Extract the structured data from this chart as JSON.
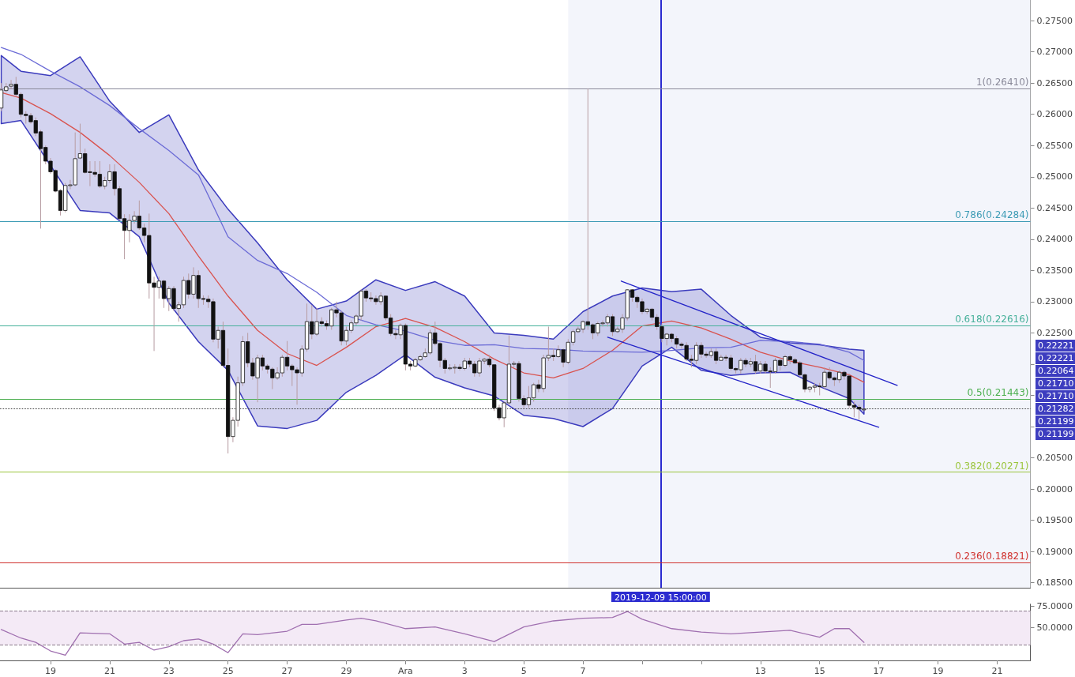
{
  "chart_data": [
    {
      "type": "candlestick",
      "tick_labels": "y",
      "xlim": [
        "2019-11-17T07:00",
        "2019-12-22T03:00"
      ],
      "ylim": [
        0.1842,
        0.2783
      ],
      "yticks": [
        {
          "value": 0.185,
          "label": "0.18500"
        },
        {
          "value": 0.19,
          "label": "0.19000"
        },
        {
          "value": 0.195,
          "label": "0.19500"
        },
        {
          "value": 0.2,
          "label": "0.20000"
        },
        {
          "value": 0.205,
          "label": "0.20500"
        },
        {
          "value": 0.21,
          "label": null
        },
        {
          "value": 0.215,
          "label": null
        },
        {
          "value": 0.22,
          "label": null
        },
        {
          "value": 0.225,
          "label": "0.22500"
        },
        {
          "value": 0.23,
          "label": "0.23000"
        },
        {
          "value": 0.235,
          "label": "0.23500"
        },
        {
          "value": 0.24,
          "label": "0.24000"
        },
        {
          "value": 0.245,
          "label": "0.24500"
        },
        {
          "value": 0.25,
          "label": "0.25000"
        },
        {
          "value": 0.255,
          "label": "0.25500"
        },
        {
          "value": 0.26,
          "label": "0.26000"
        },
        {
          "value": 0.265,
          "label": "0.26500"
        },
        {
          "value": 0.27,
          "label": "0.27000"
        },
        {
          "value": 0.275,
          "label": "0.27500"
        }
      ],
      "x": [
        "2019-11-17T08:00",
        "2019-11-17T12:00",
        "2019-11-17T16:00",
        "2019-11-17T20:00",
        "2019-11-18T00:00",
        "2019-11-18T04:00",
        "2019-11-18T08:00",
        "2019-11-18T12:00",
        "2019-11-18T16:00",
        "2019-11-18T20:00",
        "2019-11-19T00:00",
        "2019-11-19T04:00",
        "2019-11-19T08:00",
        "2019-11-19T12:00",
        "2019-11-19T16:00",
        "2019-11-19T20:00",
        "2019-11-20T00:00",
        "2019-11-20T04:00",
        "2019-11-20T08:00",
        "2019-11-20T12:00",
        "2019-11-20T16:00",
        "2019-11-20T20:00",
        "2019-11-21T00:00",
        "2019-11-21T04:00",
        "2019-11-21T08:00",
        "2019-11-21T12:00",
        "2019-11-21T16:00",
        "2019-11-21T20:00",
        "2019-11-22T00:00",
        "2019-11-22T04:00",
        "2019-11-22T08:00",
        "2019-11-22T12:00",
        "2019-11-22T16:00",
        "2019-11-22T20:00",
        "2019-11-23T00:00",
        "2019-11-23T04:00",
        "2019-11-23T08:00",
        "2019-11-23T12:00",
        "2019-11-23T16:00",
        "2019-11-23T20:00",
        "2019-11-24T00:00",
        "2019-11-24T04:00",
        "2019-11-24T08:00",
        "2019-11-24T12:00",
        "2019-11-24T16:00",
        "2019-11-24T20:00",
        "2019-11-25T00:00",
        "2019-11-25T04:00",
        "2019-11-25T08:00",
        "2019-11-25T12:00",
        "2019-11-25T16:00",
        "2019-11-25T20:00",
        "2019-11-26T00:00",
        "2019-11-26T04:00",
        "2019-11-26T08:00",
        "2019-11-26T12:00",
        "2019-11-26T16:00",
        "2019-11-26T20:00",
        "2019-11-27T00:00",
        "2019-11-27T04:00",
        "2019-11-27T08:00",
        "2019-11-27T12:00",
        "2019-11-27T16:00",
        "2019-11-27T20:00",
        "2019-11-28T00:00",
        "2019-11-28T04:00",
        "2019-11-28T08:00",
        "2019-11-28T12:00",
        "2019-11-28T16:00",
        "2019-11-28T20:00",
        "2019-11-29T00:00",
        "2019-11-29T04:00",
        "2019-11-29T08:00",
        "2019-11-29T12:00",
        "2019-11-29T16:00",
        "2019-11-29T20:00",
        "2019-11-30T00:00",
        "2019-11-30T04:00",
        "2019-11-30T08:00",
        "2019-11-30T12:00",
        "2019-11-30T16:00",
        "2019-11-30T20:00",
        "2019-12-01T00:00",
        "2019-12-01T04:00",
        "2019-12-01T08:00",
        "2019-12-01T12:00",
        "2019-12-01T16:00",
        "2019-12-01T20:00",
        "2019-12-02T00:00",
        "2019-12-02T04:00",
        "2019-12-02T08:00",
        "2019-12-02T12:00",
        "2019-12-02T16:00",
        "2019-12-02T20:00",
        "2019-12-03T00:00",
        "2019-12-03T04:00",
        "2019-12-03T08:00",
        "2019-12-03T12:00",
        "2019-12-03T16:00",
        "2019-12-03T20:00",
        "2019-12-04T00:00",
        "2019-12-04T04:00",
        "2019-12-04T08:00",
        "2019-12-04T12:00",
        "2019-12-04T16:00",
        "2019-12-04T20:00",
        "2019-12-05T00:00",
        "2019-12-05T04:00",
        "2019-12-05T08:00",
        "2019-12-05T12:00",
        "2019-12-05T16:00",
        "2019-12-05T20:00",
        "2019-12-06T00:00",
        "2019-12-06T04:00",
        "2019-12-06T08:00",
        "2019-12-06T12:00",
        "2019-12-06T16:00",
        "2019-12-06T20:00",
        "2019-12-07T00:00",
        "2019-12-07T04:00",
        "2019-12-07T08:00",
        "2019-12-07T12:00",
        "2019-12-07T16:00",
        "2019-12-07T20:00",
        "2019-12-08T00:00",
        "2019-12-08T04:00",
        "2019-12-08T08:00",
        "2019-12-08T12:00",
        "2019-12-08T16:00",
        "2019-12-08T20:00",
        "2019-12-09T00:00",
        "2019-12-09T04:00",
        "2019-12-09T08:00",
        "2019-12-09T12:00",
        "2019-12-09T16:00",
        "2019-12-09T20:00",
        "2019-12-10T00:00",
        "2019-12-10T04:00",
        "2019-12-10T08:00",
        "2019-12-10T12:00",
        "2019-12-10T16:00",
        "2019-12-10T20:00",
        "2019-12-11T00:00",
        "2019-12-11T04:00",
        "2019-12-11T08:00",
        "2019-12-11T12:00",
        "2019-12-11T16:00",
        "2019-12-11T20:00",
        "2019-12-12T00:00",
        "2019-12-12T04:00",
        "2019-12-12T08:00",
        "2019-12-12T12:00",
        "2019-12-12T16:00",
        "2019-12-12T20:00",
        "2019-12-13T00:00",
        "2019-12-13T04:00",
        "2019-12-13T08:00",
        "2019-12-13T12:00",
        "2019-12-13T16:00",
        "2019-12-13T20:00",
        "2019-12-14T00:00",
        "2019-12-14T04:00",
        "2019-12-14T08:00",
        "2019-12-14T12:00",
        "2019-12-14T16:00",
        "2019-12-14T20:00",
        "2019-12-15T00:00",
        "2019-12-15T04:00",
        "2019-12-15T08:00",
        "2019-12-15T12:00",
        "2019-12-15T16:00",
        "2019-12-15T20:00",
        "2019-12-16T00:00",
        "2019-12-16T04:00",
        "2019-12-16T08:00",
        "2019-12-16T12:00"
      ],
      "ohlc": [
        [
          0.261,
          0.265,
          0.2605,
          0.2639
        ],
        [
          0.2638,
          0.265,
          0.2635,
          0.2644
        ],
        [
          0.2645,
          0.2655,
          0.264,
          0.2648
        ],
        [
          0.2648,
          0.266,
          0.2628,
          0.2632
        ],
        [
          0.2632,
          0.2635,
          0.2595,
          0.26
        ],
        [
          0.26,
          0.2605,
          0.2585,
          0.2598
        ],
        [
          0.2598,
          0.2602,
          0.2585,
          0.2588
        ],
        [
          0.259,
          0.2595,
          0.2565,
          0.257
        ],
        [
          0.2572,
          0.2575,
          0.2417,
          0.2545
        ],
        [
          0.2547,
          0.255,
          0.252,
          0.2525
        ],
        [
          0.2525,
          0.253,
          0.2505,
          0.2508
        ],
        [
          0.251,
          0.2512,
          0.2475,
          0.2477
        ],
        [
          0.2478,
          0.248,
          0.2438,
          0.2446
        ],
        [
          0.2446,
          0.249,
          0.2443,
          0.2486
        ],
        [
          0.2486,
          0.2495,
          0.248,
          0.2487
        ],
        [
          0.2487,
          0.2571,
          0.2485,
          0.2529
        ],
        [
          0.253,
          0.2585,
          0.2528,
          0.2537
        ],
        [
          0.2537,
          0.2545,
          0.2505,
          0.2507
        ],
        [
          0.2508,
          0.2525,
          0.2485,
          0.2507
        ],
        [
          0.2507,
          0.2525,
          0.25,
          0.2504
        ],
        [
          0.2504,
          0.2525,
          0.2482,
          0.2485
        ],
        [
          0.2485,
          0.25,
          0.248,
          0.2494
        ],
        [
          0.2494,
          0.252,
          0.249,
          0.2508
        ],
        [
          0.2508,
          0.252,
          0.247,
          0.2481
        ],
        [
          0.2481,
          0.2485,
          0.243,
          0.2433
        ],
        [
          0.2433,
          0.244,
          0.2368,
          0.2414
        ],
        [
          0.2414,
          0.244,
          0.2395,
          0.243
        ],
        [
          0.243,
          0.2445,
          0.2425,
          0.2437
        ],
        [
          0.2437,
          0.2462,
          0.2415,
          0.2418
        ],
        [
          0.2418,
          0.2425,
          0.2395,
          0.2406
        ],
        [
          0.2406,
          0.2441,
          0.2305,
          0.233
        ],
        [
          0.233,
          0.234,
          0.2221,
          0.2323
        ],
        [
          0.2323,
          0.234,
          0.2305,
          0.2333
        ],
        [
          0.2333,
          0.2335,
          0.229,
          0.2305
        ],
        [
          0.2305,
          0.2325,
          0.2285,
          0.2321
        ],
        [
          0.2321,
          0.2325,
          0.2285,
          0.2289
        ],
        [
          0.2289,
          0.23,
          0.2268,
          0.2295
        ],
        [
          0.2295,
          0.234,
          0.229,
          0.2334
        ],
        [
          0.2334,
          0.2345,
          0.2305,
          0.2312
        ],
        [
          0.2312,
          0.2355,
          0.2305,
          0.2342
        ],
        [
          0.2342,
          0.235,
          0.229,
          0.2305
        ],
        [
          0.2305,
          0.231,
          0.2295,
          0.2304
        ],
        [
          0.2304,
          0.231,
          0.229,
          0.23
        ],
        [
          0.23,
          0.2305,
          0.2235,
          0.224
        ],
        [
          0.224,
          0.226,
          0.2225,
          0.2254
        ],
        [
          0.2254,
          0.2268,
          0.2195,
          0.2198
        ],
        [
          0.2198,
          0.2225,
          0.2057,
          0.2084
        ],
        [
          0.2084,
          0.2115,
          0.2075,
          0.211
        ],
        [
          0.211,
          0.218,
          0.21,
          0.217
        ],
        [
          0.217,
          0.2245,
          0.2165,
          0.2236
        ],
        [
          0.2236,
          0.225,
          0.2195,
          0.2202
        ],
        [
          0.2202,
          0.221,
          0.2175,
          0.2181
        ],
        [
          0.2178,
          0.2215,
          0.2139,
          0.221
        ],
        [
          0.221,
          0.2215,
          0.219,
          0.2197
        ],
        [
          0.2197,
          0.22,
          0.2185,
          0.2192
        ],
        [
          0.2192,
          0.2195,
          0.216,
          0.2178
        ],
        [
          0.2178,
          0.2195,
          0.2175,
          0.2186
        ],
        [
          0.2186,
          0.2215,
          0.218,
          0.2211
        ],
        [
          0.2211,
          0.2237,
          0.219,
          0.2197
        ],
        [
          0.2197,
          0.22,
          0.2165,
          0.2191
        ],
        [
          0.2191,
          0.2195,
          0.2135,
          0.2186
        ],
        [
          0.2186,
          0.223,
          0.218,
          0.2224
        ],
        [
          0.2224,
          0.2297,
          0.222,
          0.2268
        ],
        [
          0.2268,
          0.2295,
          0.224,
          0.2248
        ],
        [
          0.2248,
          0.229,
          0.2245,
          0.2268
        ],
        [
          0.2268,
          0.2275,
          0.226,
          0.2265
        ],
        [
          0.2265,
          0.227,
          0.2255,
          0.2261
        ],
        [
          0.2261,
          0.229,
          0.2255,
          0.2287
        ],
        [
          0.2287,
          0.23,
          0.2275,
          0.2282
        ],
        [
          0.2282,
          0.2285,
          0.223,
          0.2237
        ],
        [
          0.2237,
          0.226,
          0.223,
          0.2254
        ],
        [
          0.2254,
          0.227,
          0.225,
          0.2266
        ],
        [
          0.2266,
          0.228,
          0.2262,
          0.2277
        ],
        [
          0.2277,
          0.232,
          0.227,
          0.2317
        ],
        [
          0.2317,
          0.232,
          0.23,
          0.2306
        ],
        [
          0.2306,
          0.2315,
          0.23,
          0.2305
        ],
        [
          0.2305,
          0.231,
          0.2295,
          0.23
        ],
        [
          0.23,
          0.2315,
          0.2295,
          0.2309
        ],
        [
          0.2309,
          0.231,
          0.227,
          0.2274
        ],
        [
          0.2274,
          0.228,
          0.2245,
          0.2249
        ],
        [
          0.2249,
          0.2255,
          0.224,
          0.2247
        ],
        [
          0.2247,
          0.2265,
          0.224,
          0.2262
        ],
        [
          0.2262,
          0.2265,
          0.219,
          0.22
        ],
        [
          0.22,
          0.2205,
          0.219,
          0.2197
        ],
        [
          0.2197,
          0.221,
          0.2195,
          0.2207
        ],
        [
          0.2207,
          0.2215,
          0.2205,
          0.2212
        ],
        [
          0.2212,
          0.2225,
          0.221,
          0.2218
        ],
        [
          0.2218,
          0.2255,
          0.2215,
          0.225
        ],
        [
          0.225,
          0.2268,
          0.223,
          0.2233
        ],
        [
          0.2233,
          0.2235,
          0.2195,
          0.2206
        ],
        [
          0.2206,
          0.221,
          0.2185,
          0.2193
        ],
        [
          0.2193,
          0.22,
          0.219,
          0.2194
        ],
        [
          0.2194,
          0.22,
          0.2185,
          0.2195
        ],
        [
          0.2195,
          0.22,
          0.219,
          0.2193
        ],
        [
          0.2193,
          0.221,
          0.219,
          0.2205
        ],
        [
          0.2205,
          0.221,
          0.2195,
          0.22
        ],
        [
          0.22,
          0.2205,
          0.218,
          0.2186
        ],
        [
          0.2186,
          0.221,
          0.218,
          0.2205
        ],
        [
          0.2205,
          0.221,
          0.22,
          0.2208
        ],
        [
          0.2208,
          0.2215,
          0.2195,
          0.2199
        ],
        [
          0.2199,
          0.22,
          0.2125,
          0.213
        ],
        [
          0.213,
          0.2135,
          0.211,
          0.2114
        ],
        [
          0.2114,
          0.214,
          0.2099,
          0.2138
        ],
        [
          0.2138,
          0.2246,
          0.2135,
          0.22
        ],
        [
          0.22,
          0.2205,
          0.2195,
          0.2201
        ],
        [
          0.2201,
          0.2205,
          0.214,
          0.2145
        ],
        [
          0.2145,
          0.215,
          0.213,
          0.2135
        ],
        [
          0.2135,
          0.2165,
          0.213,
          0.2146
        ],
        [
          0.2146,
          0.217,
          0.214,
          0.2167
        ],
        [
          0.2167,
          0.2175,
          0.2155,
          0.2161
        ],
        [
          0.2161,
          0.2215,
          0.2155,
          0.221
        ],
        [
          0.221,
          0.226,
          0.2205,
          0.2214
        ],
        [
          0.2214,
          0.2225,
          0.2205,
          0.2212
        ],
        [
          0.2212,
          0.223,
          0.221,
          0.2223
        ],
        [
          0.2223,
          0.2225,
          0.2195,
          0.2203
        ],
        [
          0.2203,
          0.224,
          0.22,
          0.2235
        ],
        [
          0.2235,
          0.2255,
          0.223,
          0.2252
        ],
        [
          0.2252,
          0.226,
          0.225,
          0.2256
        ],
        [
          0.2256,
          0.227,
          0.225,
          0.2268
        ],
        [
          0.2268,
          0.2641,
          0.2255,
          0.2263
        ],
        [
          0.2263,
          0.2265,
          0.224,
          0.225
        ],
        [
          0.225,
          0.2268,
          0.2245,
          0.2265
        ],
        [
          0.2265,
          0.227,
          0.226,
          0.2266
        ],
        [
          0.2266,
          0.228,
          0.226,
          0.2276
        ],
        [
          0.2276,
          0.228,
          0.2245,
          0.2252
        ],
        [
          0.2252,
          0.226,
          0.225,
          0.2256
        ],
        [
          0.2256,
          0.228,
          0.225,
          0.2274
        ],
        [
          0.2274,
          0.232,
          0.227,
          0.2319
        ],
        [
          0.2319,
          0.232,
          0.23,
          0.2307
        ],
        [
          0.2307,
          0.231,
          0.229,
          0.23
        ],
        [
          0.23,
          0.2305,
          0.228,
          0.2284
        ],
        [
          0.2284,
          0.229,
          0.228,
          0.2288
        ],
        [
          0.2288,
          0.229,
          0.227,
          0.2275
        ],
        [
          0.2275,
          0.228,
          0.2255,
          0.226
        ],
        [
          0.226,
          0.2265,
          0.2235,
          0.2241
        ],
        [
          0.2241,
          0.225,
          0.223,
          0.2248
        ],
        [
          0.2248,
          0.225,
          0.2235,
          0.2241
        ],
        [
          0.2241,
          0.2245,
          0.2225,
          0.2232
        ],
        [
          0.2232,
          0.2235,
          0.2225,
          0.223
        ],
        [
          0.223,
          0.2235,
          0.2205,
          0.2208
        ],
        [
          0.2208,
          0.2215,
          0.2195,
          0.2206
        ],
        [
          0.2206,
          0.2235,
          0.22,
          0.223
        ],
        [
          0.223,
          0.2235,
          0.221,
          0.2216
        ],
        [
          0.2216,
          0.222,
          0.221,
          0.2214
        ],
        [
          0.2214,
          0.2225,
          0.221,
          0.222
        ],
        [
          0.222,
          0.2225,
          0.22,
          0.2206
        ],
        [
          0.2206,
          0.2215,
          0.2205,
          0.2211
        ],
        [
          0.2211,
          0.2215,
          0.2205,
          0.221
        ],
        [
          0.221,
          0.2215,
          0.219,
          0.2193
        ],
        [
          0.2193,
          0.2195,
          0.2185,
          0.2191
        ],
        [
          0.2191,
          0.221,
          0.2185,
          0.2206
        ],
        [
          0.2206,
          0.221,
          0.2195,
          0.22
        ],
        [
          0.22,
          0.221,
          0.2195,
          0.2204
        ],
        [
          0.2204,
          0.2215,
          0.2185,
          0.2189
        ],
        [
          0.2189,
          0.2205,
          0.2185,
          0.22
        ],
        [
          0.22,
          0.2205,
          0.2185,
          0.2189
        ],
        [
          0.2189,
          0.2195,
          0.2162,
          0.2188
        ],
        [
          0.2188,
          0.221,
          0.2185,
          0.2206
        ],
        [
          0.2206,
          0.221,
          0.219,
          0.2198
        ],
        [
          0.2198,
          0.2215,
          0.2195,
          0.2212
        ],
        [
          0.2212,
          0.2215,
          0.22,
          0.2207
        ],
        [
          0.2207,
          0.221,
          0.22,
          0.2202
        ],
        [
          0.2202,
          0.2205,
          0.218,
          0.2183
        ],
        [
          0.2183,
          0.2185,
          0.2155,
          0.216
        ],
        [
          0.216,
          0.2165,
          0.2155,
          0.2163
        ],
        [
          0.2163,
          0.217,
          0.2155,
          0.2165
        ],
        [
          0.2165,
          0.217,
          0.215,
          0.2164
        ],
        [
          0.2164,
          0.2195,
          0.216,
          0.2187
        ],
        [
          0.2187,
          0.2195,
          0.2175,
          0.2178
        ],
        [
          0.2178,
          0.218,
          0.2165,
          0.2175
        ],
        [
          0.2175,
          0.219,
          0.217,
          0.2187
        ],
        [
          0.2187,
          0.219,
          0.2175,
          0.2181
        ],
        [
          0.2181,
          0.2185,
          0.213,
          0.2134
        ],
        [
          0.2134,
          0.214,
          0.2115,
          0.2131
        ],
        [
          0.2131,
          0.2135,
          0.2111,
          0.2128
        ],
        [
          0.2128,
          0.213,
          0.2125,
          0.2128
        ]
      ],
      "series": [
        {
          "type": "line",
          "color": "#d9534f",
          "x": [
            "2019-11-17T08:00",
            "2019-11-18",
            "2019-11-19",
            "2019-11-20",
            "2019-11-21",
            "2019-11-22",
            "2019-11-23",
            "2019-11-24",
            "2019-11-25",
            "2019-11-26",
            "2019-11-27",
            "2019-11-28",
            "2019-11-29",
            "2019-11-30",
            "2019-12-01",
            "2019-12-02",
            "2019-12-03",
            "2019-12-04",
            "2019-12-05",
            "2019-12-06",
            "2019-12-07",
            "2019-12-08",
            "2019-12-09",
            "2019-12-10",
            "2019-12-11",
            "2019-12-12",
            "2019-12-13",
            "2019-12-14",
            "2019-12-15",
            "2019-12-16",
            "2019-12-16T12:00"
          ],
          "values": [
            0.2635,
            0.2626,
            0.2601,
            0.2571,
            0.2534,
            0.2491,
            0.2441,
            0.2373,
            0.2309,
            0.2254,
            0.2217,
            0.2198,
            0.2227,
            0.226,
            0.2273,
            0.2259,
            0.2236,
            0.2208,
            0.2186,
            0.2178,
            0.2193,
            0.2222,
            0.2261,
            0.2269,
            0.2258,
            0.224,
            0.2219,
            0.2205,
            0.2195,
            0.2183,
            0.2171
          ],
          "upper": [
            0.2694,
            0.2669,
            0.2662,
            0.2692,
            0.2621,
            0.2571,
            0.2599,
            0.2511,
            0.2448,
            0.2394,
            0.2335,
            0.2288,
            0.2301,
            0.2335,
            0.2318,
            0.2332,
            0.2309,
            0.225,
            0.2246,
            0.224,
            0.2284,
            0.2309,
            0.2322,
            0.2316,
            0.232,
            0.2278,
            0.2243,
            0.2234,
            0.2231,
            0.2224,
            0.2222
          ],
          "lower": [
            0.2585,
            0.259,
            0.2518,
            0.2446,
            0.2442,
            0.2404,
            0.2298,
            0.2236,
            0.219,
            0.2101,
            0.2097,
            0.211,
            0.2155,
            0.2182,
            0.2215,
            0.2179,
            0.2162,
            0.2149,
            0.2118,
            0.2113,
            0.21,
            0.2129,
            0.2197,
            0.2227,
            0.219,
            0.2182,
            0.2186,
            0.2187,
            0.2164,
            0.2145,
            0.212
          ]
        },
        {
          "type": "line",
          "color": "#6b6bd6",
          "x": [
            "2019-11-17T08:00",
            "2019-11-18",
            "2019-11-19",
            "2019-11-20",
            "2019-11-21",
            "2019-11-22",
            "2019-11-23",
            "2019-11-24",
            "2019-11-25",
            "2019-11-26",
            "2019-11-27",
            "2019-11-28",
            "2019-11-29",
            "2019-11-30",
            "2019-12-01",
            "2019-12-02",
            "2019-12-03",
            "2019-12-04",
            "2019-12-05",
            "2019-12-06",
            "2019-12-07",
            "2019-12-08",
            "2019-12-09",
            "2019-12-10",
            "2019-12-11",
            "2019-12-12",
            "2019-12-13",
            "2019-12-14",
            "2019-12-15",
            "2019-12-16",
            "2019-12-16T12:00"
          ],
          "values": [
            0.2707,
            0.2696,
            0.2669,
            0.2644,
            0.2614,
            0.2577,
            0.2542,
            0.2503,
            0.2404,
            0.2366,
            0.2345,
            0.2315,
            0.2278,
            0.2263,
            0.2253,
            0.2238,
            0.223,
            0.2231,
            0.2225,
            0.2224,
            0.2221,
            0.222,
            0.2219,
            0.2222,
            0.2226,
            0.2227,
            0.2238,
            0.2236,
            0.2232,
            0.2219,
            0.2206
          ]
        },
        {
          "type": "line",
          "color": "#2323c8",
          "x": [
            "2019-12-08T07:00",
            "2019-12-17T15:00"
          ],
          "values": [
            0.2333,
            0.2166
          ]
        },
        {
          "type": "line",
          "color": "#2323c8",
          "x": [
            "2019-12-07T20:00",
            "2019-12-17T00:00"
          ],
          "values": [
            0.2243,
            0.2099
          ]
        }
      ],
      "ref_lines": [
        {
          "axis": "x",
          "value": "2019-12-09T15:00",
          "label": "2019-12-09 15:00:00",
          "color": "#2b2bd0"
        },
        {
          "axis": "y",
          "value": 0.2641,
          "label": "1(0.26410)",
          "color": "#8a8a9a"
        },
        {
          "axis": "y",
          "value": 0.24284,
          "label": "0.786(0.24284)",
          "color": "#3d9bb5"
        },
        {
          "axis": "y",
          "value": 0.22616,
          "label": "0.618(0.22616)",
          "color": "#45b09a"
        },
        {
          "axis": "y",
          "value": 0.21443,
          "label": "0.5(0.21443)",
          "color": "#4caf50"
        },
        {
          "axis": "y",
          "value": 0.20271,
          "label": "0.382(0.20271)",
          "color": "#9bc53d"
        },
        {
          "axis": "y",
          "value": 0.18821,
          "label": "0.236(0.18821)",
          "color": "#d0312d"
        },
        {
          "axis": "y",
          "value": 0.21282,
          "line_style": "dotted",
          "color": "#444444"
        }
      ],
      "bands": [
        {
          "axis": "x",
          "from": "2019-12-06T12:00",
          "to": "2019-12-22T03:00",
          "color": "#f3f5fb"
        }
      ],
      "annotations": [
        "0.22221",
        "0.22221",
        "0.22064",
        "0.21710",
        "0.21710",
        "0.21282",
        "0.21199",
        "0.21199"
      ]
    },
    {
      "type": "line",
      "color": "#a070b0",
      "xlim": [
        "2019-11-17T07:00",
        "2019-12-22T03:00"
      ],
      "ylim": [
        12,
        77.5
      ],
      "yticks": [
        {
          "value": 50,
          "label": "50.0000"
        },
        {
          "value": 75,
          "label": "75.0000"
        }
      ],
      "xticks": [
        {
          "value": "2019-11-19",
          "label": "19"
        },
        {
          "value": "2019-11-21",
          "label": "21"
        },
        {
          "value": "2019-11-23",
          "label": "23"
        },
        {
          "value": "2019-11-25",
          "label": "25"
        },
        {
          "value": "2019-11-27",
          "label": "27"
        },
        {
          "value": "2019-11-29",
          "label": "29"
        },
        {
          "value": "2019-12-01",
          "label": "Ara"
        },
        {
          "value": "2019-12-03",
          "label": "3"
        },
        {
          "value": "2019-12-05",
          "label": "5"
        },
        {
          "value": "2019-12-07",
          "label": "7"
        },
        {
          "value": "2019-12-09",
          "label": null
        },
        {
          "value": "2019-12-11",
          "label": null
        },
        {
          "value": "2019-12-13",
          "label": "13"
        },
        {
          "value": "2019-12-15",
          "label": "15"
        },
        {
          "value": "2019-12-17",
          "label": "17"
        },
        {
          "value": "2019-12-19",
          "label": "19"
        },
        {
          "value": "2019-12-21",
          "label": "21"
        }
      ],
      "x": [
        "2019-11-17T08:00",
        "2019-11-18T00:00",
        "2019-11-18T12:00",
        "2019-11-19T00:00",
        "2019-11-19T12:00",
        "2019-11-20T00:00",
        "2019-11-21T00:00",
        "2019-11-21T12:00",
        "2019-11-22T00:00",
        "2019-11-22T12:00",
        "2019-11-23T00:00",
        "2019-11-23T12:00",
        "2019-11-24T00:00",
        "2019-11-24T12:00",
        "2019-11-25T00:00",
        "2019-11-25T12:00",
        "2019-11-26T00:00",
        "2019-11-27T00:00",
        "2019-11-27T12:00",
        "2019-11-28T00:00",
        "2019-11-29T00:00",
        "2019-11-29T12:00",
        "2019-11-30T00:00",
        "2019-12-01T00:00",
        "2019-12-02T00:00",
        "2019-12-03T00:00",
        "2019-12-04T00:00",
        "2019-12-05T00:00",
        "2019-12-06T00:00",
        "2019-12-07T00:00",
        "2019-12-08T00:00",
        "2019-12-08T12:00",
        "2019-12-09T00:00",
        "2019-12-10T00:00",
        "2019-12-11T00:00",
        "2019-12-12T00:00",
        "2019-12-13T00:00",
        "2019-12-14T00:00",
        "2019-12-15T00:00",
        "2019-12-15T12:00",
        "2019-12-16T00:00",
        "2019-12-16T12:00"
      ],
      "values": [
        48,
        38,
        33,
        23,
        18,
        44,
        43,
        31,
        33,
        24,
        28,
        35,
        37,
        31,
        21,
        43,
        42,
        46,
        54,
        54,
        59,
        61,
        58,
        49,
        51,
        43,
        34,
        51,
        58,
        61,
        62,
        69,
        60,
        49,
        45,
        43,
        45,
        47,
        39,
        49,
        49,
        33
      ],
      "ref_lines": [
        {
          "axis": "y",
          "value": 70,
          "line_style": "dashed",
          "color": "#8a7a8a"
        },
        {
          "axis": "y",
          "value": 30,
          "line_style": "dashed",
          "color": "#8a7a8a"
        }
      ],
      "bands": [
        {
          "axis": "y",
          "from": 30,
          "to": 70,
          "color": "#f4eaf6"
        }
      ]
    }
  ]
}
